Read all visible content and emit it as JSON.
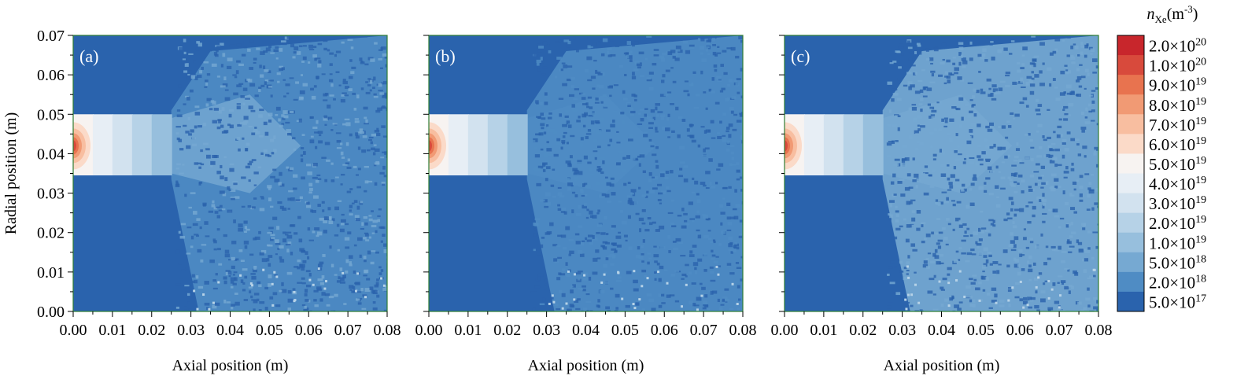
{
  "chart_data": [
    {
      "type": "heatmap",
      "panel_label": "(a)",
      "xlabel": "Axial position (m)",
      "ylabel": "Radial position (m)",
      "xlim": [
        0,
        0.08
      ],
      "ylim": [
        0,
        0.07
      ],
      "xticks": [
        "0.00",
        "0.01",
        "0.02",
        "0.03",
        "0.04",
        "0.05",
        "0.06",
        "0.07",
        "0.08"
      ],
      "yticks": [
        "0.00",
        "0.01",
        "0.02",
        "0.03",
        "0.04",
        "0.05",
        "0.06",
        "0.07"
      ],
      "channel": {
        "x_exit": 0.025,
        "r_inner": 0.0345,
        "r_outer": 0.05
      },
      "peak_density": 2e+20,
      "plume_density_near": 5e+18,
      "plume_density_far": 2e+18,
      "background_density": 5e+17
    },
    {
      "type": "heatmap",
      "panel_label": "(b)",
      "xlabel": "Axial position (m)",
      "ylabel": "",
      "xlim": [
        0,
        0.08
      ],
      "ylim": [
        0,
        0.07
      ],
      "xticks": [
        "0.00",
        "0.01",
        "0.02",
        "0.03",
        "0.04",
        "0.05",
        "0.06",
        "0.07",
        "0.08"
      ],
      "yticks": [],
      "channel": {
        "x_exit": 0.025,
        "r_inner": 0.0345,
        "r_outer": 0.05
      },
      "peak_density": 2e+20,
      "plume_density_near": 2e+18,
      "plume_density_far": 2e+18,
      "background_density": 5e+17
    },
    {
      "type": "heatmap",
      "panel_label": "(c)",
      "xlabel": "Axial position (m)",
      "ylabel": "",
      "xlim": [
        0,
        0.08
      ],
      "ylim": [
        0,
        0.07
      ],
      "xticks": [
        "0.00",
        "0.01",
        "0.02",
        "0.03",
        "0.04",
        "0.05",
        "0.06",
        "0.07",
        "0.08"
      ],
      "yticks": [],
      "channel": {
        "x_exit": 0.025,
        "r_inner": 0.0345,
        "r_outer": 0.05
      },
      "peak_density": 2e+20,
      "plume_density_near": 5e+18,
      "plume_density_far": 5e+18,
      "background_density": 5e+17
    }
  ],
  "colorbar": {
    "title_symbol": "n",
    "title_subscript": "Xe",
    "title_unit": "(m",
    "title_unit_exp": "-3",
    "title_unit_close": ")",
    "levels": [
      {
        "mantissa": "2.0",
        "exponent": "20",
        "color": "#c8262c"
      },
      {
        "mantissa": "1.0",
        "exponent": "20",
        "color": "#d84a3c"
      },
      {
        "mantissa": "9.0",
        "exponent": "19",
        "color": "#e8734f"
      },
      {
        "mantissa": "8.0",
        "exponent": "19",
        "color": "#f19a74"
      },
      {
        "mantissa": "7.0",
        "exponent": "19",
        "color": "#f8bea0"
      },
      {
        "mantissa": "6.0",
        "exponent": "19",
        "color": "#fbdac8"
      },
      {
        "mantissa": "5.0",
        "exponent": "19",
        "color": "#f7f3f1"
      },
      {
        "mantissa": "4.0",
        "exponent": "19",
        "color": "#e7eef5"
      },
      {
        "mantissa": "3.0",
        "exponent": "19",
        "color": "#d2e2ef"
      },
      {
        "mantissa": "2.0",
        "exponent": "19",
        "color": "#b6d2e7"
      },
      {
        "mantissa": "1.0",
        "exponent": "19",
        "color": "#97bfdd"
      },
      {
        "mantissa": "5.0",
        "exponent": "18",
        "color": "#76a9d2"
      },
      {
        "mantissa": "2.0",
        "exponent": "18",
        "color": "#4f8cc4"
      },
      {
        "mantissa": "5.0",
        "exponent": "17",
        "color": "#2a63ad"
      }
    ]
  }
}
